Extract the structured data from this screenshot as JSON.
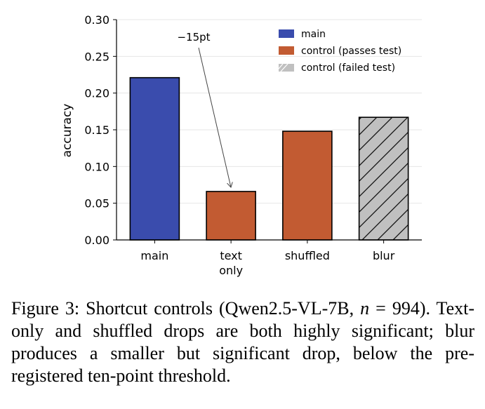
{
  "chart_data": {
    "type": "bar",
    "categories": [
      [
        "main"
      ],
      [
        "text",
        "only"
      ],
      [
        "shuffled"
      ],
      [
        "blur"
      ]
    ],
    "values": [
      0.221,
      0.066,
      0.148,
      0.167
    ],
    "bar_groups": [
      "main",
      "control (passes test)",
      "control (passes test)",
      "control (failed test)"
    ],
    "ylabel": "accuracy",
    "xlabel": "",
    "ylim": [
      0,
      0.3
    ],
    "yticks": [
      "0.00",
      "0.05",
      "0.10",
      "0.15",
      "0.20",
      "0.25",
      "0.30"
    ],
    "ytick_values": [
      0,
      0.05,
      0.1,
      0.15,
      0.2,
      0.25,
      0.3
    ],
    "grid": "horizontal",
    "legend_position": "top-right",
    "legend": [
      {
        "label": "main",
        "color": "#3a4cad",
        "hatch": false
      },
      {
        "label": "control (passes test)",
        "color": "#c25b32",
        "hatch": false
      },
      {
        "label": "control (failed test)",
        "color": "#c0c0c0",
        "hatch": true
      }
    ],
    "annotation": {
      "text": "−15pt",
      "points_to": "text only"
    }
  },
  "caption": {
    "prefix": "Figure 3: Shortcut controls (Qwen2.5-VL-7B,",
    "n_symbol": "n",
    "equals": "=",
    "rest": "994). Text-only and shuffled drops are both highly significant; blur produces a smaller but significant drop, below the pre-registered ten-point threshold."
  }
}
